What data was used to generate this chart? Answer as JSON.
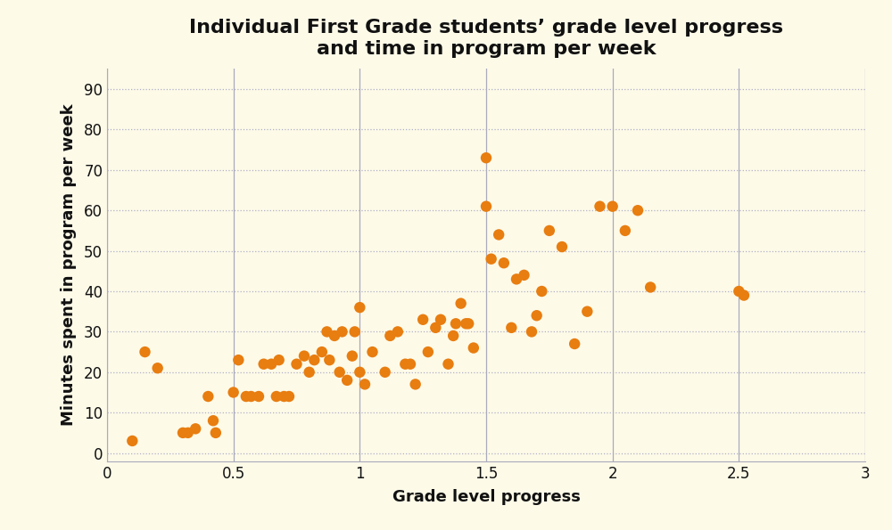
{
  "title": "Individual First Grade students’ grade level progress\nand time in program per week",
  "xlabel": "Grade level progress",
  "ylabel": "Minutes spent in program per week",
  "background_color": "#FDFAE8",
  "dot_color": "#E87D10",
  "xlim": [
    0,
    3
  ],
  "ylim": [
    -2,
    95
  ],
  "xticks": [
    0,
    0.5,
    1.0,
    1.5,
    2.0,
    2.5,
    3.0
  ],
  "yticks": [
    0,
    10,
    20,
    30,
    40,
    50,
    60,
    70,
    80,
    90
  ],
  "x": [
    0.1,
    0.15,
    0.2,
    0.3,
    0.32,
    0.35,
    0.4,
    0.42,
    0.43,
    0.5,
    0.52,
    0.55,
    0.57,
    0.6,
    0.62,
    0.65,
    0.67,
    0.68,
    0.7,
    0.72,
    0.75,
    0.78,
    0.8,
    0.82,
    0.85,
    0.87,
    0.88,
    0.9,
    0.92,
    0.93,
    0.95,
    0.97,
    0.98,
    1.0,
    1.0,
    1.02,
    1.05,
    1.1,
    1.12,
    1.15,
    1.18,
    1.2,
    1.22,
    1.25,
    1.27,
    1.3,
    1.32,
    1.35,
    1.37,
    1.38,
    1.4,
    1.42,
    1.43,
    1.45,
    1.5,
    1.5,
    1.52,
    1.55,
    1.57,
    1.6,
    1.62,
    1.65,
    1.68,
    1.7,
    1.72,
    1.75,
    1.8,
    1.85,
    1.9,
    1.95,
    2.0,
    2.05,
    2.1,
    2.15,
    2.5,
    2.52
  ],
  "y": [
    3,
    25,
    21,
    5,
    5,
    6,
    14,
    8,
    5,
    15,
    23,
    14,
    14,
    14,
    22,
    22,
    14,
    23,
    14,
    14,
    22,
    24,
    20,
    23,
    25,
    30,
    23,
    29,
    20,
    30,
    18,
    24,
    30,
    36,
    20,
    17,
    25,
    20,
    29,
    30,
    22,
    22,
    17,
    33,
    25,
    31,
    33,
    22,
    29,
    32,
    37,
    32,
    32,
    26,
    73,
    61,
    48,
    54,
    47,
    31,
    43,
    44,
    30,
    34,
    40,
    55,
    51,
    27,
    35,
    61,
    61,
    55,
    60,
    41,
    40,
    39
  ],
  "title_fontsize": 16,
  "axis_label_fontsize": 13,
  "tick_fontsize": 12,
  "marker_size": 80,
  "grid_color": "#B0B0C8",
  "vline_color": "#AAAABC",
  "grid_style": ":"
}
